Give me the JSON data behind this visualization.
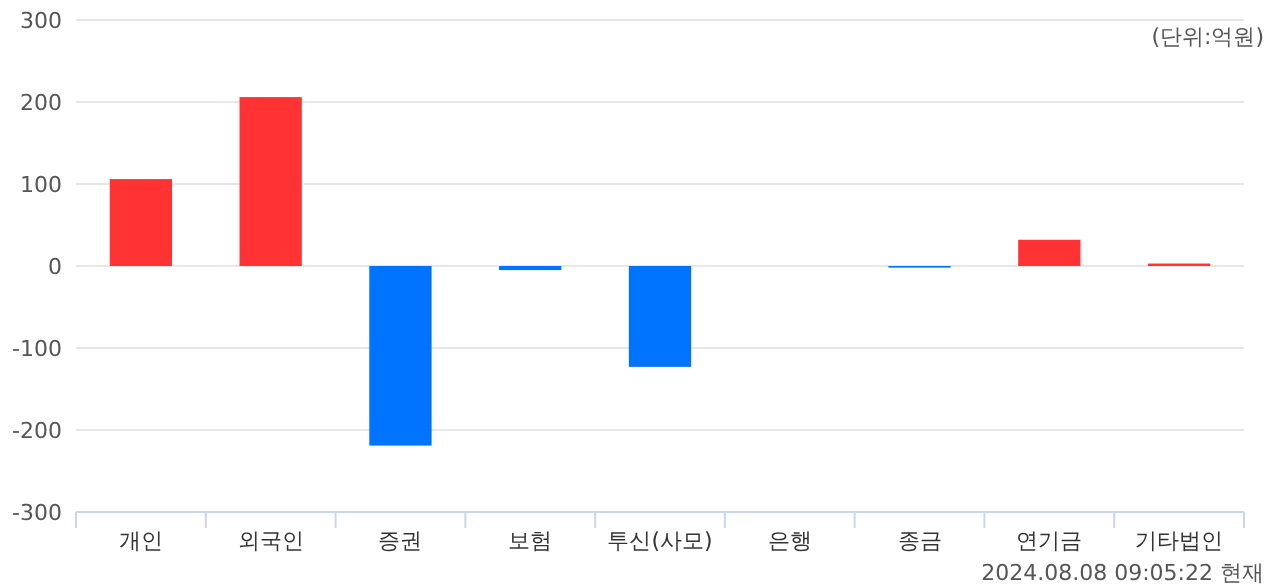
{
  "chart_data": {
    "type": "bar",
    "categories": [
      "개인",
      "외국인",
      "증권",
      "보험",
      "투신(사모)",
      "은행",
      "종금",
      "연기금",
      "기타법인"
    ],
    "values": [
      106,
      206,
      -219,
      -5,
      -123,
      0,
      -2,
      32,
      3
    ],
    "colors": [
      "#ff3333",
      "#ff3333",
      "#0073ff",
      "#0073ff",
      "#0073ff",
      "#ff3333",
      "#0073ff",
      "#ff3333",
      "#ff3333"
    ],
    "ylim": [
      -300,
      300
    ],
    "yticks": [
      -300,
      -200,
      -100,
      0,
      100,
      200,
      300
    ],
    "grid": "y",
    "annotations": [
      "(단위:억원)",
      "2024.08.08 09:05:22 현재"
    ]
  }
}
